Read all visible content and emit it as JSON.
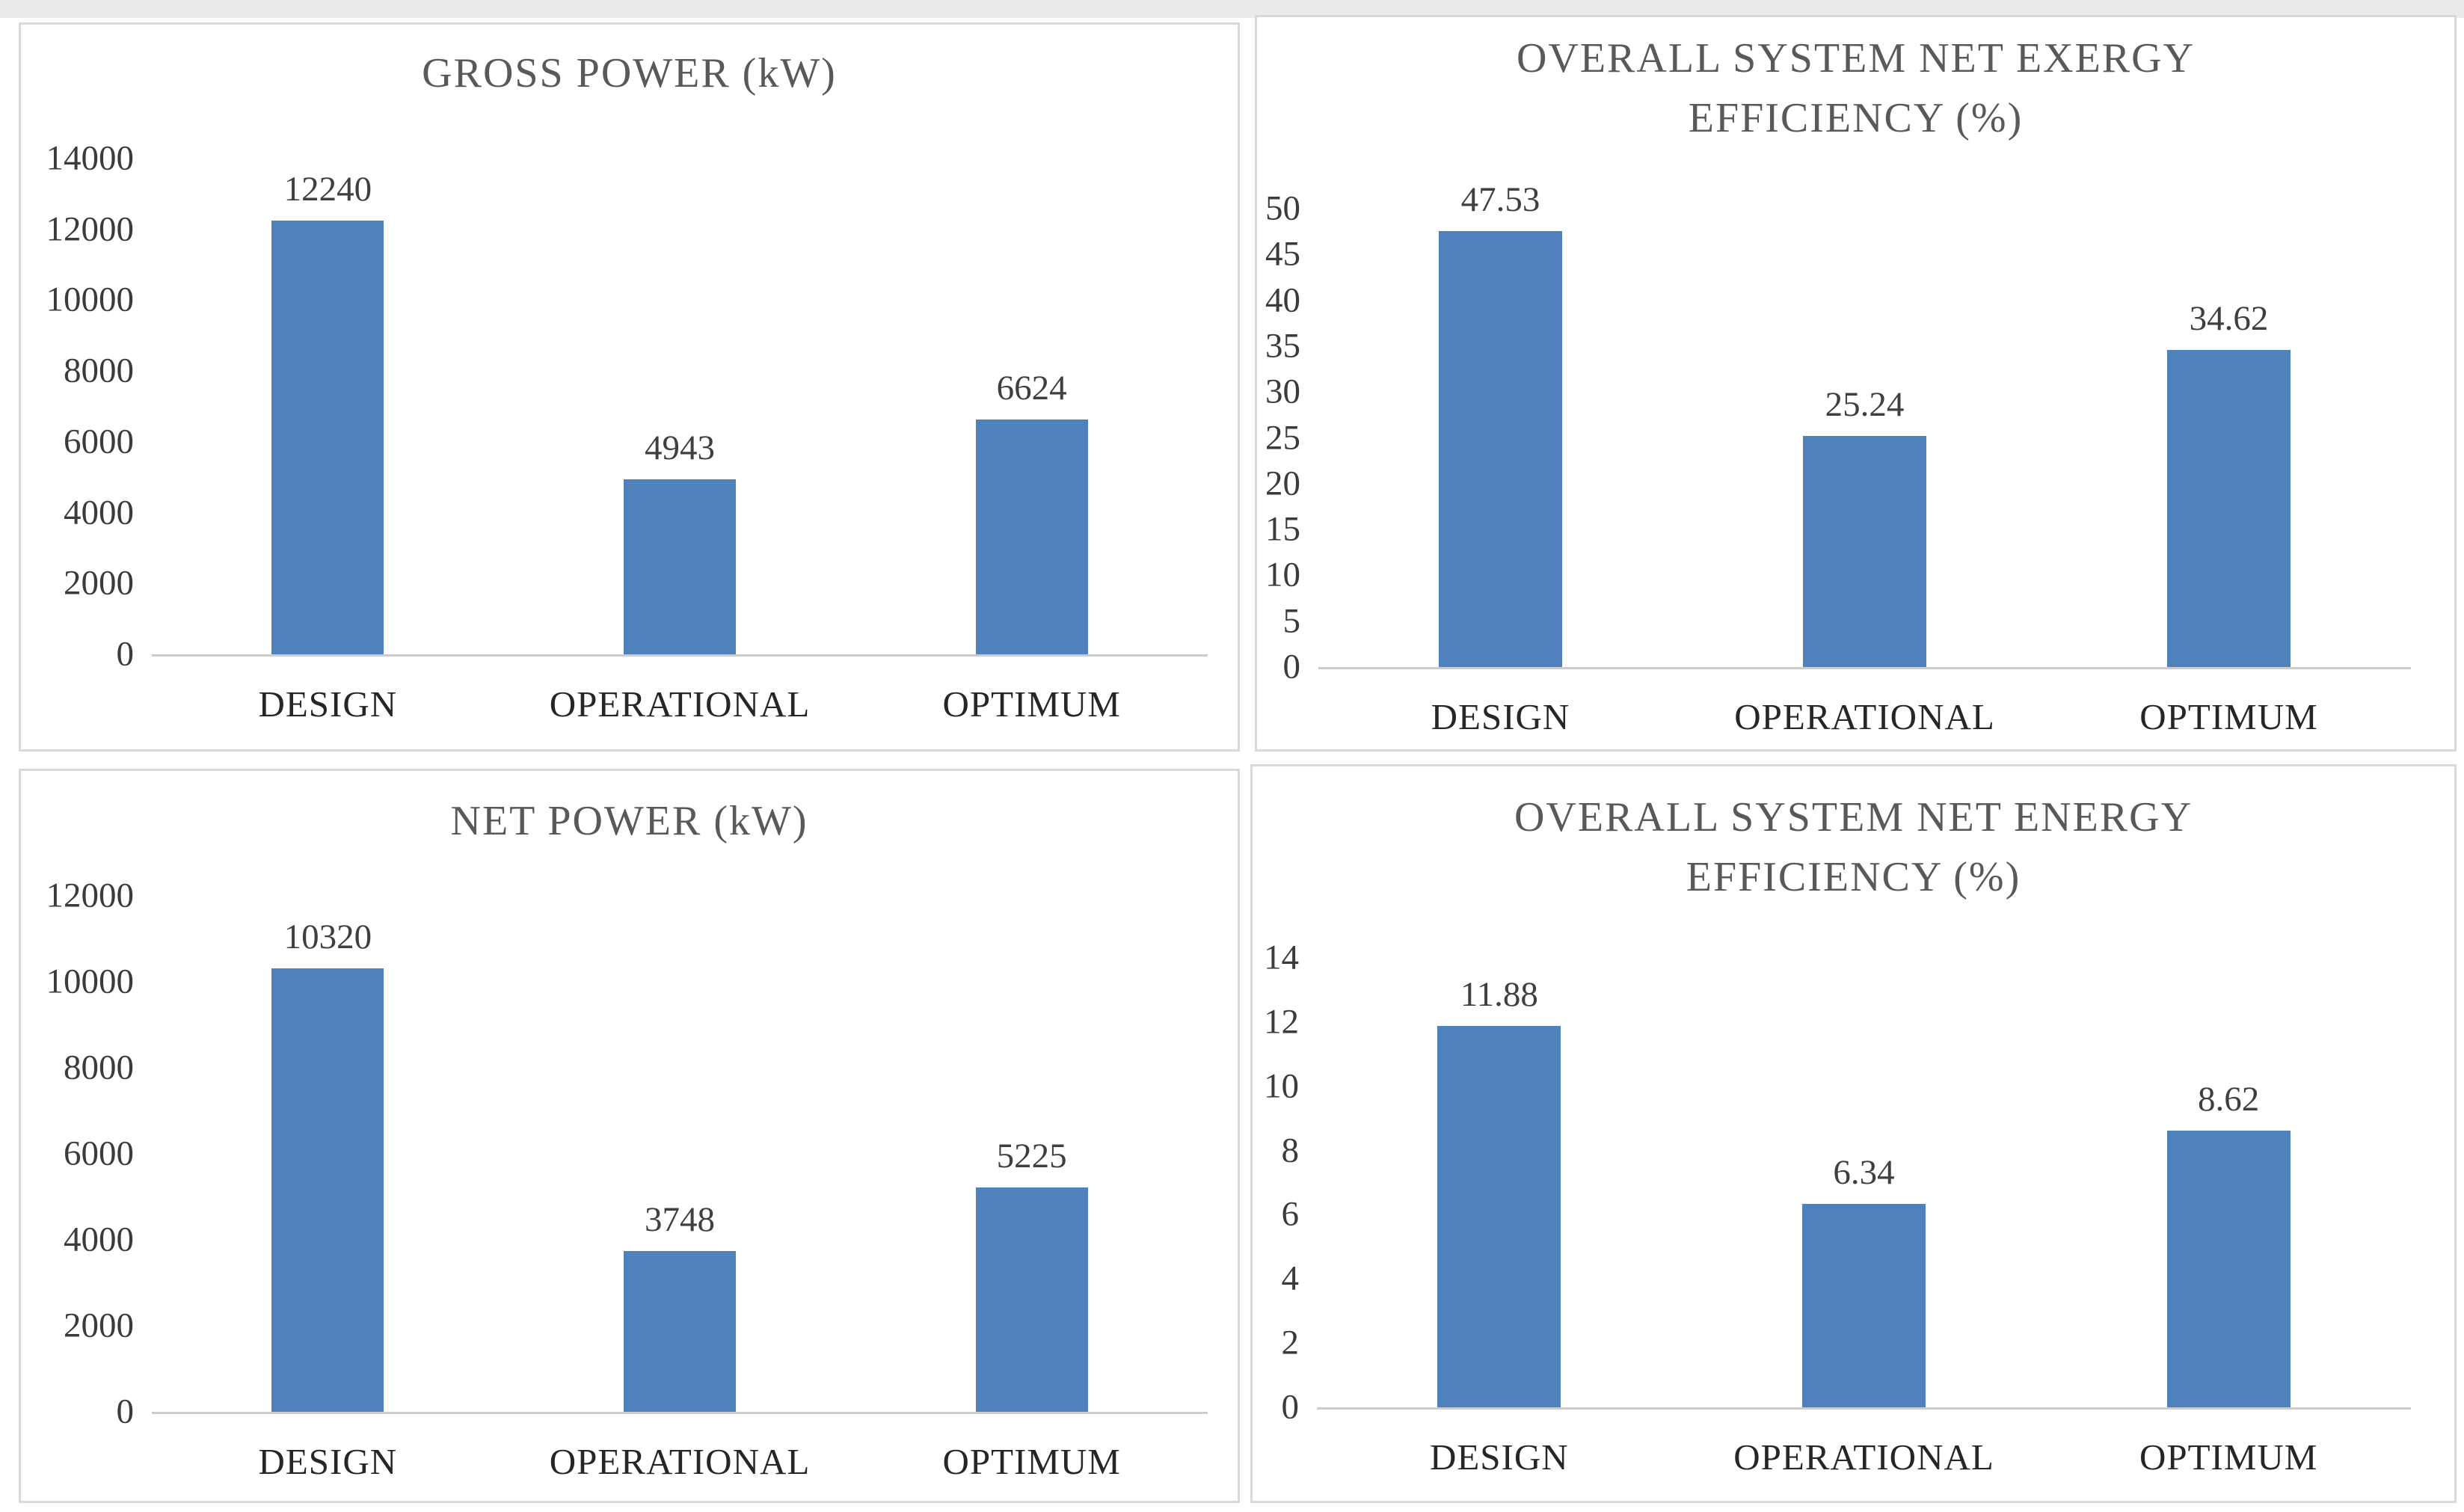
{
  "colors": {
    "bar": "#4f81bd",
    "title_text": "#595959",
    "tick_text": "#3b3b3b",
    "category_text": "#262626",
    "value_text": "#3f3f3f",
    "axis_line": "#cccccc",
    "panel_border": "#d9d9d9",
    "top_strip": "#ebebeb",
    "panel_bg": "#ffffff"
  },
  "chart_data": [
    {
      "type": "bar",
      "title": "GROSS POWER (kW)",
      "title_lines": [
        "GROSS POWER (kW)"
      ],
      "categories": [
        "DESIGN",
        "OPERATIONAL",
        "OPTIMUM"
      ],
      "values": [
        12240,
        4943,
        6624
      ],
      "value_labels": [
        "12240",
        "4943",
        "6624"
      ],
      "ylim": [
        0,
        14000
      ],
      "ytick_step": 2000,
      "yticks": [
        "0",
        "2000",
        "4000",
        "6000",
        "8000",
        "10000",
        "12000",
        "14000"
      ],
      "grid": false,
      "legend": false
    },
    {
      "type": "bar",
      "title": "OVERALL SYSTEM NET EXERGY EFFICIENCY (%)",
      "title_lines": [
        "OVERALL SYSTEM NET EXERGY",
        "EFFICIENCY (%)"
      ],
      "categories": [
        "DESIGN",
        "OPERATIONAL",
        "OPTIMUM"
      ],
      "values": [
        47.53,
        25.24,
        34.62
      ],
      "value_labels": [
        "47.53",
        "25.24",
        "34.62"
      ],
      "ylim": [
        0,
        50
      ],
      "ytick_step": 5,
      "yticks": [
        "0",
        "5",
        "10",
        "15",
        "20",
        "25",
        "30",
        "35",
        "40",
        "45",
        "50"
      ],
      "grid": false,
      "legend": false
    },
    {
      "type": "bar",
      "title": "NET POWER (kW)",
      "title_lines": [
        "NET POWER (kW)"
      ],
      "categories": [
        "DESIGN",
        "OPERATIONAL",
        "OPTIMUM"
      ],
      "values": [
        10320,
        3748,
        5225
      ],
      "value_labels": [
        "10320",
        "3748",
        "5225"
      ],
      "ylim": [
        0,
        12000
      ],
      "ytick_step": 2000,
      "yticks": [
        "0",
        "2000",
        "4000",
        "6000",
        "8000",
        "10000",
        "12000"
      ],
      "grid": false,
      "legend": false
    },
    {
      "type": "bar",
      "title": "OVERALL SYSTEM NET ENERGY EFFICIENCY (%)",
      "title_lines": [
        "OVERALL SYSTEM NET ENERGY",
        "EFFICIENCY (%)"
      ],
      "categories": [
        "DESIGN",
        "OPERATIONAL",
        "OPTIMUM"
      ],
      "values": [
        11.88,
        6.34,
        8.62
      ],
      "value_labels": [
        "11.88",
        "6.34",
        "8.62"
      ],
      "ylim": [
        0,
        14
      ],
      "ytick_step": 2,
      "yticks": [
        "0",
        "2",
        "4",
        "6",
        "8",
        "10",
        "12",
        "14"
      ],
      "grid": false,
      "legend": false
    }
  ]
}
